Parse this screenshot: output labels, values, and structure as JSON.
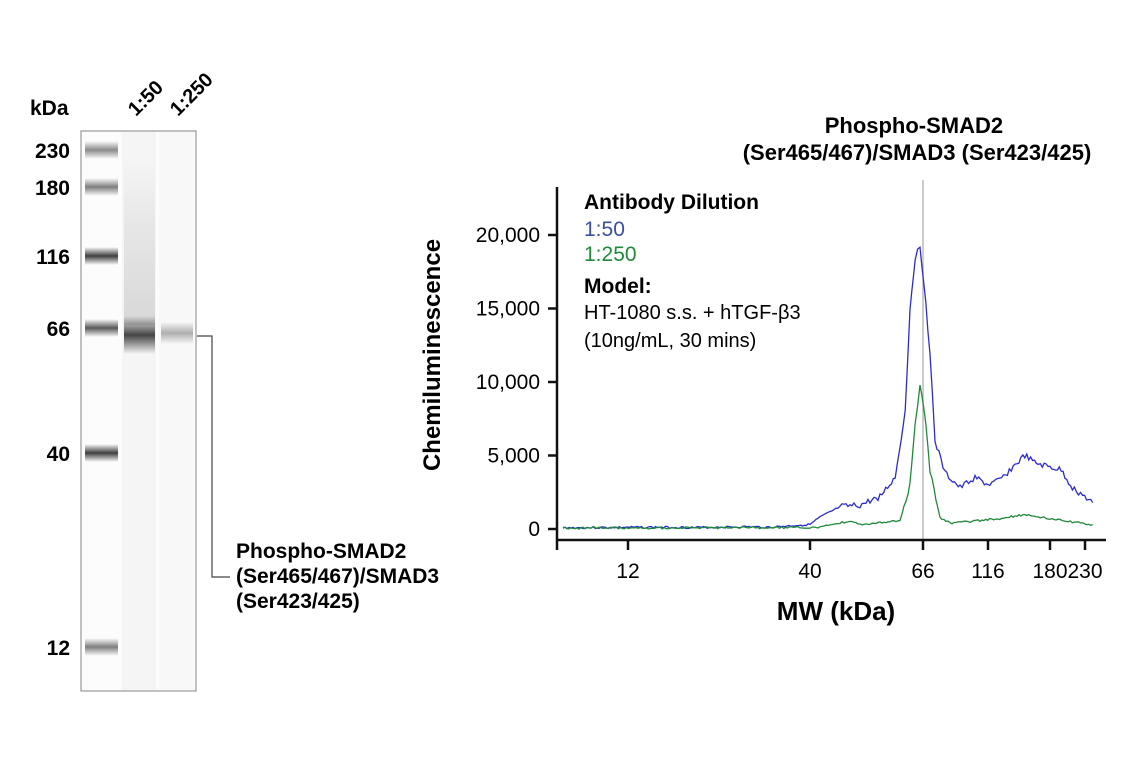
{
  "gel": {
    "unit_label": "kDa",
    "lane_labels": [
      "1:50",
      "1:250"
    ],
    "ladder": [
      "230",
      "180",
      "116",
      "66",
      "40",
      "12"
    ],
    "band_label": [
      "Phospho-SMAD2",
      "(Ser465/467)/SMAD3",
      "(Ser423/425)"
    ]
  },
  "chart_data": {
    "type": "line",
    "title": [
      "Phospho-SMAD2",
      "(Ser465/467)/SMAD3 (Ser423/425)"
    ],
    "xlabel": "MW (kDa)",
    "ylabel": "Chemiluminescence",
    "x_ticks": [
      12,
      40,
      66,
      116,
      180,
      230
    ],
    "x_tick_labels": [
      "12",
      "40",
      "66",
      "116",
      "180",
      "230"
    ],
    "y_ticks": [
      0,
      5000,
      10000,
      15000,
      20000
    ],
    "y_tick_labels": [
      "0",
      "5,000",
      "10,000",
      "15,000",
      "20,000"
    ],
    "ylim": [
      0,
      23000
    ],
    "grid": false,
    "reference_line_x": 66,
    "legend": {
      "placement": "top-left",
      "heading": "Antibody Dilution",
      "model_heading": "Model:",
      "model_lines": [
        "HT-1080 s.s. + hTGF-β3",
        "(10ng/mL, 30 mins)"
      ]
    },
    "series": [
      {
        "name": "1:50",
        "color": "#2b2bd6",
        "label_color": "#3a4fa0",
        "points": [
          [
            2,
            80
          ],
          [
            15,
            120
          ],
          [
            23,
            100
          ],
          [
            30,
            150
          ],
          [
            34,
            120
          ],
          [
            38,
            250
          ],
          [
            40,
            300
          ],
          [
            42.3,
            800
          ],
          [
            46.9,
            1500
          ],
          [
            51.5,
            1600
          ],
          [
            56.1,
            2200
          ],
          [
            59.6,
            3500
          ],
          [
            61.9,
            8000
          ],
          [
            63,
            15000
          ],
          [
            64.2,
            18500
          ],
          [
            65.3,
            19200
          ],
          [
            66.5,
            17000
          ],
          [
            71.4,
            12000
          ],
          [
            75.2,
            6000
          ],
          [
            82.9,
            3800
          ],
          [
            94.5,
            2800
          ],
          [
            106,
            3500
          ],
          [
            116,
            3000
          ],
          [
            128,
            3300
          ],
          [
            154,
            5000
          ],
          [
            164,
            4500
          ],
          [
            180,
            4200
          ],
          [
            196,
            4000
          ],
          [
            212,
            2800
          ],
          [
            241,
            1800
          ]
        ]
      },
      {
        "name": "1:250",
        "color": "#1f8a3a",
        "label_color": "#1f8a3a",
        "points": [
          [
            2,
            60
          ],
          [
            20,
            80
          ],
          [
            35,
            90
          ],
          [
            42.3,
            100
          ],
          [
            48.3,
            500
          ],
          [
            52.9,
            300
          ],
          [
            60.7,
            600
          ],
          [
            63,
            3000
          ],
          [
            64.2,
            7000
          ],
          [
            65.3,
            9800
          ],
          [
            66.5,
            8500
          ],
          [
            71.4,
            4000
          ],
          [
            79,
            800
          ],
          [
            86.8,
            400
          ],
          [
            128,
            700
          ],
          [
            154,
            1000
          ],
          [
            180,
            700
          ],
          [
            241,
            300
          ]
        ]
      }
    ]
  }
}
